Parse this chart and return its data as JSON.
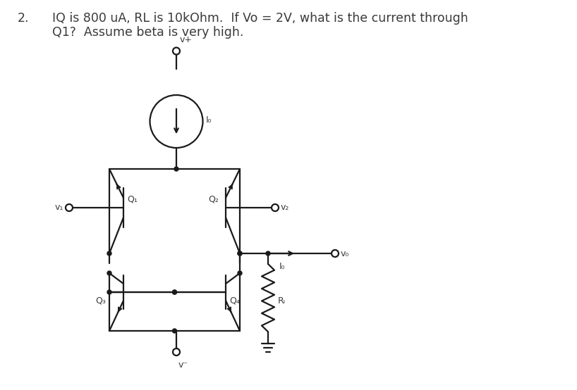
{
  "title_number": "2.",
  "title_text": "IQ is 800 uA, RL is 10kOhm.  If Vo = 2V, what is the current through\nQ1?  Assume beta is very high.",
  "title_fontsize": 12.5,
  "bg_color": "#ffffff",
  "text_color": "#3a3a3a",
  "circuit_color": "#1a1a1a",
  "labels": {
    "vplus": "v+",
    "vminus": "v⁻",
    "IQ": "I₀",
    "Q1": "Q₁",
    "Q2": "Q₂",
    "Q3": "Q₃",
    "Q4": "Q₄",
    "v1": "v₁",
    "v2": "v₂",
    "Vo": "v₀",
    "Io": "I₀",
    "RL": "Rₗ"
  }
}
